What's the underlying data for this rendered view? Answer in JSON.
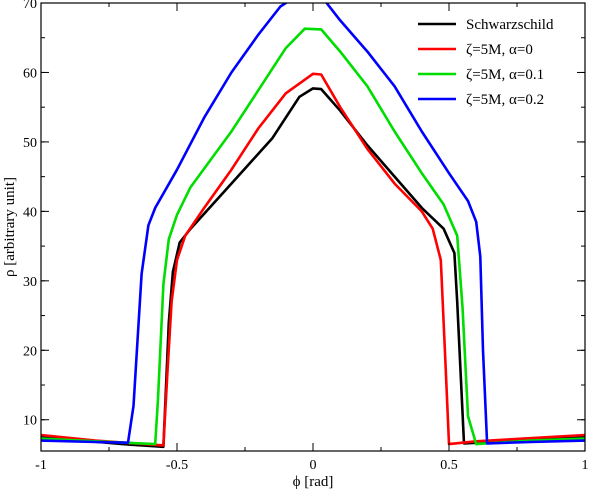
{
  "chart_data": {
    "type": "line",
    "xlabel": "ϕ [rad]",
    "ylabel": "ρ [arbitrary unit]",
    "xlim": [
      -1,
      1
    ],
    "ylim": [
      5.5,
      70
    ],
    "x_ticks": [
      -1,
      -0.5,
      0,
      0.5,
      1
    ],
    "x_tick_labels": [
      "-1",
      "-0.5",
      "0",
      "0.5",
      "1"
    ],
    "y_ticks": [
      10,
      20,
      30,
      40,
      50,
      60,
      70
    ],
    "y_tick_labels": [
      "10",
      "20",
      "30",
      "40",
      "50",
      "60",
      "70"
    ],
    "grid": false,
    "legend_position": "top-right",
    "series": [
      {
        "name": "Schwarzschild",
        "color": "#000000",
        "points": [
          [
            -1,
            7.5
          ],
          [
            -0.7,
            6.5
          ],
          [
            -0.55,
            6.1
          ],
          [
            -0.54,
            15
          ],
          [
            -0.53,
            24
          ],
          [
            -0.515,
            31.3
          ],
          [
            -0.49,
            35.5
          ],
          [
            -0.45,
            37.5
          ],
          [
            -0.3,
            44
          ],
          [
            -0.15,
            50.5
          ],
          [
            -0.05,
            56.5
          ],
          [
            0,
            57.7
          ],
          [
            0.03,
            57.6
          ],
          [
            0.1,
            54.5
          ],
          [
            0.2,
            49.5
          ],
          [
            0.3,
            45
          ],
          [
            0.4,
            40.5
          ],
          [
            0.48,
            37.5
          ],
          [
            0.52,
            34
          ],
          [
            0.53,
            27
          ],
          [
            0.545,
            15
          ],
          [
            0.555,
            6.6
          ],
          [
            0.7,
            6.9
          ],
          [
            1,
            7.5
          ]
        ]
      },
      {
        "name": "ζ=5M,  α=0",
        "color": "#ff0000",
        "points": [
          [
            -1,
            7.8
          ],
          [
            -0.8,
            7
          ],
          [
            -0.55,
            6.3
          ],
          [
            -0.535,
            17
          ],
          [
            -0.52,
            27
          ],
          [
            -0.5,
            33
          ],
          [
            -0.47,
            36.5
          ],
          [
            -0.4,
            40.5
          ],
          [
            -0.3,
            46
          ],
          [
            -0.2,
            52
          ],
          [
            -0.1,
            57
          ],
          [
            0,
            59.8
          ],
          [
            0.03,
            59.7
          ],
          [
            0.1,
            55
          ],
          [
            0.2,
            49
          ],
          [
            0.3,
            44
          ],
          [
            0.4,
            40
          ],
          [
            0.44,
            37.5
          ],
          [
            0.47,
            33
          ],
          [
            0.485,
            20
          ],
          [
            0.5,
            6.5
          ],
          [
            0.6,
            6.9
          ],
          [
            1,
            7.8
          ]
        ]
      },
      {
        "name": "ζ=5M,  α=0.1",
        "color": "#00dd00",
        "points": [
          [
            -1,
            7.3
          ],
          [
            -0.8,
            6.9
          ],
          [
            -0.58,
            6.5
          ],
          [
            -0.57,
            13
          ],
          [
            -0.55,
            29.5
          ],
          [
            -0.53,
            36
          ],
          [
            -0.5,
            39.5
          ],
          [
            -0.45,
            43.5
          ],
          [
            -0.3,
            51.5
          ],
          [
            -0.2,
            57.5
          ],
          [
            -0.1,
            63.5
          ],
          [
            -0.03,
            66.3
          ],
          [
            0.03,
            66.2
          ],
          [
            0.1,
            63
          ],
          [
            0.2,
            58
          ],
          [
            0.3,
            51.5
          ],
          [
            0.4,
            45.5
          ],
          [
            0.48,
            41
          ],
          [
            0.53,
            36.5
          ],
          [
            0.55,
            26
          ],
          [
            0.57,
            10.5
          ],
          [
            0.6,
            6.5
          ],
          [
            0.8,
            7
          ],
          [
            1,
            7.3
          ]
        ]
      },
      {
        "name": "ζ=5M,  α=0.2",
        "color": "#0000ff",
        "points": [
          [
            -1,
            7
          ],
          [
            -0.8,
            6.8
          ],
          [
            -0.68,
            6.7
          ],
          [
            -0.66,
            12
          ],
          [
            -0.63,
            31
          ],
          [
            -0.605,
            38
          ],
          [
            -0.58,
            40.5
          ],
          [
            -0.5,
            46
          ],
          [
            -0.4,
            53.5
          ],
          [
            -0.3,
            60
          ],
          [
            -0.2,
            65.5
          ],
          [
            -0.12,
            69.5
          ],
          [
            -0.08,
            70.5
          ],
          [
            0.04,
            70.5
          ],
          [
            0.1,
            67.5
          ],
          [
            0.2,
            63
          ],
          [
            0.3,
            58
          ],
          [
            0.4,
            51.5
          ],
          [
            0.5,
            45.5
          ],
          [
            0.57,
            41.5
          ],
          [
            0.6,
            38.5
          ],
          [
            0.615,
            33.5
          ],
          [
            0.625,
            20
          ],
          [
            0.64,
            6.6
          ],
          [
            0.8,
            6.8
          ],
          [
            1,
            7
          ]
        ]
      }
    ]
  }
}
